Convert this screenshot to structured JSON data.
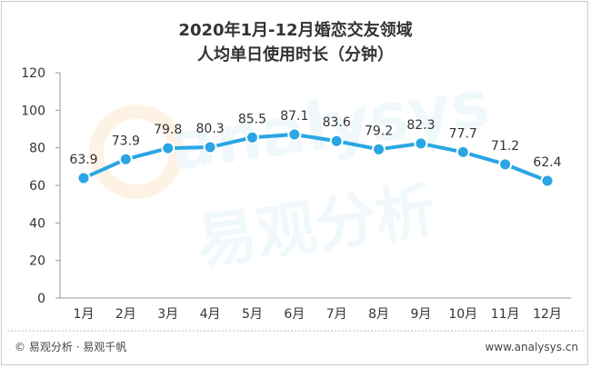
{
  "chart_data": {
    "type": "line",
    "title": "2020年1月-12月婚恋交友领域",
    "subtitle": "人均单日使用时长（分钟）",
    "categories": [
      "1月",
      "2月",
      "3月",
      "4月",
      "5月",
      "6月",
      "7月",
      "8月",
      "9月",
      "10月",
      "11月",
      "12月"
    ],
    "series": [
      {
        "name": "",
        "values": [
          63.9,
          73.9,
          79.8,
          80.3,
          85.5,
          87.1,
          83.6,
          79.2,
          82.3,
          77.7,
          71.2,
          62.4
        ]
      }
    ],
    "ylim": [
      0,
      120
    ],
    "yticks": [
      0,
      20,
      40,
      60,
      80,
      100,
      120
    ],
    "grid": false,
    "legend": "none",
    "colors": {
      "line": "#29a6e3",
      "marker_fill": "#29a6e3",
      "marker_stroke": "#ffffff",
      "axis": "#999999",
      "text": "#333333"
    }
  },
  "footer": {
    "left": "© 易观分析 · 易观千帆",
    "right": "www.analysys.cn"
  },
  "watermark": {
    "latin": "analysys",
    "chinese": "易观分析"
  }
}
